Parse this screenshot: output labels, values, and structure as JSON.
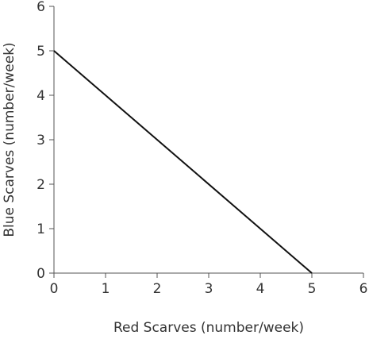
{
  "chart_data": {
    "type": "line",
    "title": "",
    "xlabel": "Red Scarves (number/week)",
    "ylabel": "Blue Scarves (number/week)",
    "xlim": [
      0,
      6
    ],
    "ylim": [
      0,
      6
    ],
    "x_ticks": [
      "0",
      "1",
      "2",
      "3",
      "4",
      "5",
      "6"
    ],
    "y_ticks": [
      "0",
      "1",
      "2",
      "3",
      "4",
      "5",
      "6"
    ],
    "grid": false,
    "legend": "none",
    "series": [
      {
        "x": [
          0,
          5
        ],
        "y": [
          5,
          0
        ],
        "color": "#111111"
      }
    ]
  }
}
